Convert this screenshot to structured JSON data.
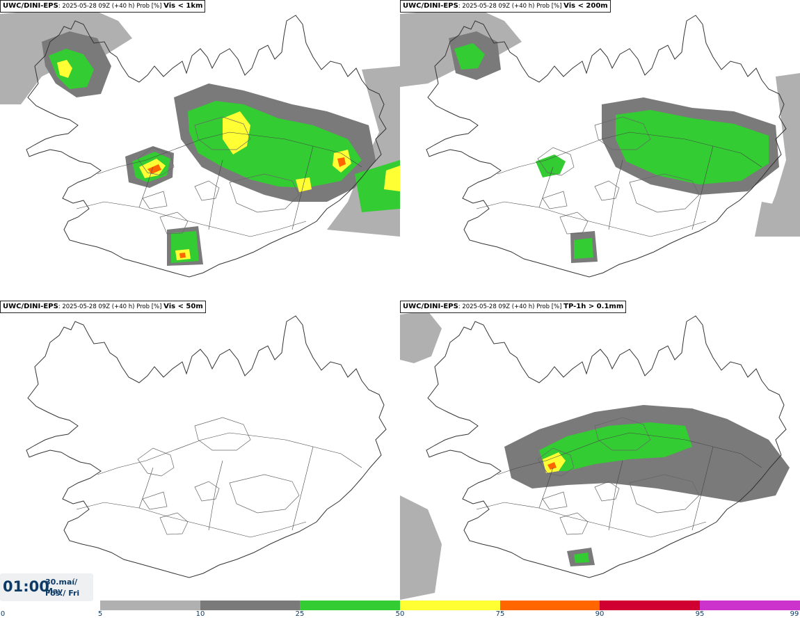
{
  "panels": [
    {
      "source": "UWC/DINI-EPS",
      "meta": ": 2025-05-28 09Z (+40 h) Prob [%] ",
      "variable": "Vis < 1km"
    },
    {
      "source": "UWC/DINI-EPS",
      "meta": ": 2025-05-28 09Z (+40 h) Prob [%] ",
      "variable": "Vis < 200m"
    },
    {
      "source": "UWC/DINI-EPS",
      "meta": ": 2025-05-28 09Z (+40 h) Prob [%] ",
      "variable": "Vis < 50m"
    },
    {
      "source": "UWC/DINI-EPS",
      "meta": ": 2025-05-28 09Z (+40 h) Prob [%] ",
      "variable": "TP-1h > 0.1mm"
    }
  ],
  "valid_time": {
    "time": "01:00",
    "date_line1": "30.maí/ May",
    "date_line2": "Fös./ Fri"
  },
  "colorbar": {
    "ticks": [
      "0",
      "5",
      "10",
      "25",
      "50",
      "75",
      "90",
      "95",
      "99"
    ],
    "colors": [
      "#ffffff",
      "#b0b0b0",
      "#7a7a7a",
      "#33cc33",
      "#ffff33",
      "#ff6600",
      "#d00030",
      "#cc33cc",
      "#f0b0f0"
    ]
  }
}
